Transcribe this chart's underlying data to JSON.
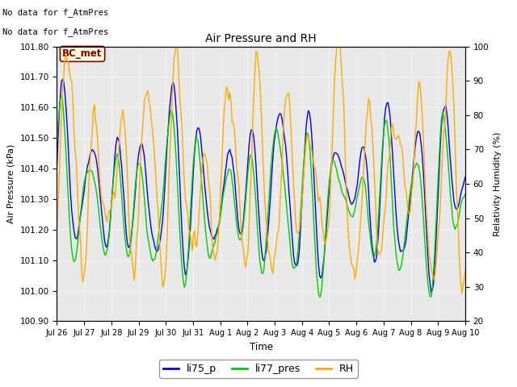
{
  "title": "Air Pressure and RH",
  "xlabel": "Time",
  "ylabel_left": "Air Pressure (kPa)",
  "ylabel_right": "Relativity Humidity (%)",
  "ylim_left": [
    100.9,
    101.8
  ],
  "ylim_right": [
    20,
    100
  ],
  "yticks_left": [
    100.9,
    101.0,
    101.1,
    101.2,
    101.3,
    101.4,
    101.5,
    101.6,
    101.7,
    101.8
  ],
  "yticks_right": [
    20,
    30,
    40,
    50,
    60,
    70,
    80,
    90,
    100
  ],
  "note_line1": "No data for f_AtmPres",
  "note_line2": "No data for f_AtmPres",
  "station_label": "BC_met",
  "colors": {
    "li75_p": "#0000ee",
    "li77_pres": "#00cc00",
    "RH": "#ffaa00",
    "bg_band": "#e8e8e8"
  },
  "legend_entries": [
    "li75_p",
    "li77_pres",
    "RH"
  ]
}
